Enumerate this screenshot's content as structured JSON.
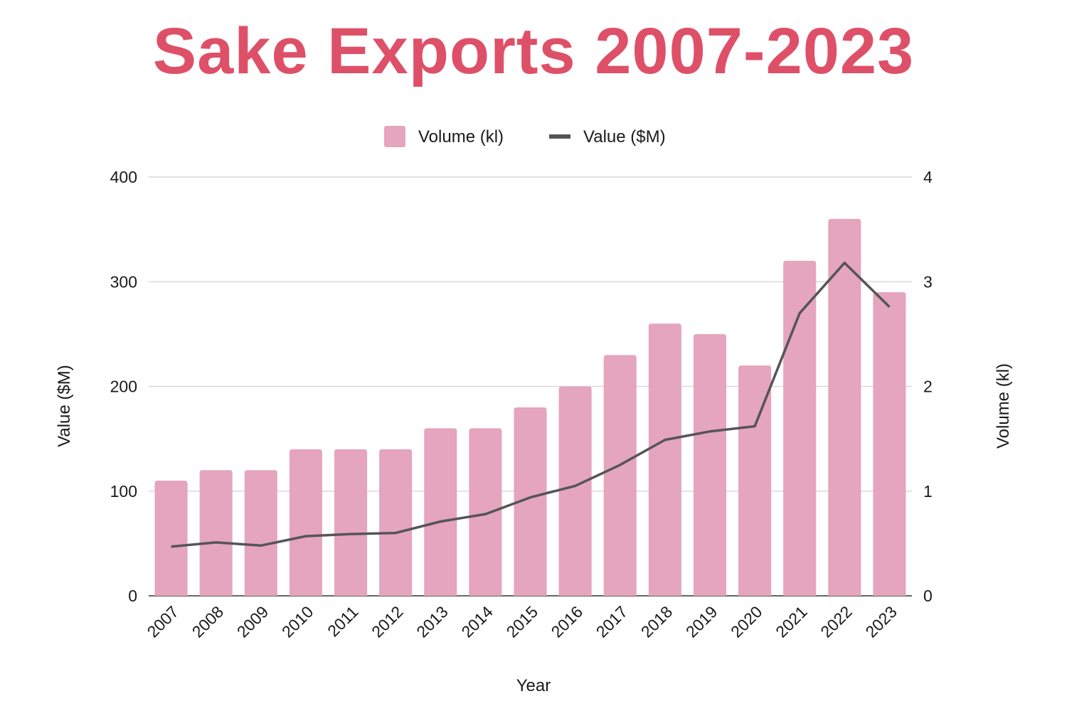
{
  "title": "Sake Exports 2007-2023",
  "colors": {
    "title": "#de5068",
    "bar": "#e4a5bd",
    "line": "#555555"
  },
  "chart_data": {
    "type": "bar",
    "title": "Sake Exports 2007-2023",
    "xlabel": "Year",
    "ylabel_left": "Value ($M)",
    "ylabel_right": "Volume (kl)",
    "categories": [
      "2007",
      "2008",
      "2009",
      "2010",
      "2011",
      "2012",
      "2013",
      "2014",
      "2015",
      "2016",
      "2017",
      "2018",
      "2019",
      "2020",
      "2021",
      "2022",
      "2023"
    ],
    "left_ticks": [
      "400",
      "300",
      "200",
      "100",
      "0"
    ],
    "right_ticks": [
      "4",
      "3",
      "2",
      "1",
      "0"
    ],
    "ylim_left": [
      0,
      400
    ],
    "ylim_right": [
      0,
      4
    ],
    "legend_position": "top-center",
    "grid": true,
    "series": [
      {
        "name": "Volume (kl)",
        "type": "bar",
        "axis": "right",
        "values": [
          1.1,
          1.2,
          1.2,
          1.4,
          1.4,
          1.4,
          1.6,
          1.6,
          1.8,
          2.0,
          2.3,
          2.6,
          2.5,
          2.2,
          3.2,
          3.6,
          2.9
        ]
      },
      {
        "name": "Value ($M)",
        "type": "line",
        "axis": "left",
        "values": [
          47,
          51,
          48,
          57,
          59,
          60,
          71,
          78,
          94,
          105,
          125,
          149,
          157,
          162,
          270,
          318,
          276
        ]
      }
    ]
  }
}
